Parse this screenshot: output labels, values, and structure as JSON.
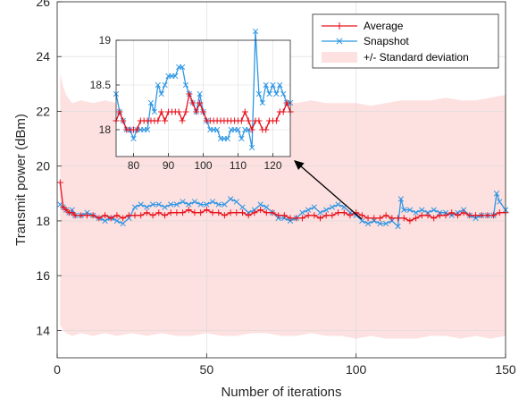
{
  "chart_data": {
    "type": "line",
    "xlabel": "Number of iterations",
    "ylabel": "Transmit power (dBm)",
    "xlim": [
      0,
      150
    ],
    "ylim": [
      13,
      26
    ],
    "xticks": [
      0,
      50,
      100,
      150
    ],
    "yticks": [
      14,
      16,
      18,
      20,
      22,
      24,
      26
    ],
    "grid": true,
    "legend_position": "top-right",
    "colors": {
      "average": "#e8101c",
      "snapshot": "#2f97e4",
      "band": "#fde0e0"
    },
    "legend": [
      "Average",
      "Snapshot",
      "+/- Standard deviation"
    ],
    "series": [
      {
        "name": "Average",
        "x": [
          1,
          2,
          3,
          4,
          5,
          6,
          8,
          10,
          12,
          14,
          16,
          18,
          20,
          22,
          24,
          26,
          28,
          30,
          32,
          34,
          36,
          38,
          40,
          42,
          44,
          46,
          48,
          50,
          52,
          54,
          56,
          58,
          60,
          62,
          64,
          66,
          68,
          70,
          72,
          74,
          76,
          78,
          80,
          82,
          84,
          86,
          88,
          90,
          92,
          94,
          96,
          98,
          100,
          102,
          104,
          106,
          108,
          110,
          112,
          114,
          116,
          118,
          120,
          122,
          124,
          126,
          128,
          130,
          132,
          134,
          136,
          138,
          140,
          142,
          144,
          146,
          148,
          150
        ],
        "y": [
          19.4,
          18.5,
          18.4,
          18.3,
          18.3,
          18.2,
          18.2,
          18.2,
          18.2,
          18.1,
          18.2,
          18.1,
          18.2,
          18.1,
          18.2,
          18.2,
          18.2,
          18.3,
          18.2,
          18.3,
          18.2,
          18.3,
          18.3,
          18.3,
          18.4,
          18.3,
          18.3,
          18.4,
          18.3,
          18.3,
          18.2,
          18.3,
          18.3,
          18.3,
          18.2,
          18.3,
          18.4,
          18.3,
          18.3,
          18.2,
          18.2,
          18.1,
          18.1,
          18.1,
          18.2,
          18.2,
          18.1,
          18.2,
          18.2,
          18.3,
          18.3,
          18.2,
          18.3,
          18.2,
          18.1,
          18.1,
          18.1,
          18.2,
          18.1,
          18.1,
          18.1,
          18.0,
          18.1,
          18.2,
          18.2,
          18.1,
          18.2,
          18.2,
          18.3,
          18.2,
          18.3,
          18.2,
          18.2,
          18.2,
          18.2,
          18.2,
          18.3,
          18.3
        ]
      },
      {
        "name": "Snapshot",
        "x": [
          1,
          2,
          3,
          4,
          5,
          6,
          8,
          10,
          12,
          14,
          16,
          18,
          20,
          22,
          24,
          26,
          28,
          30,
          32,
          34,
          36,
          38,
          40,
          42,
          44,
          46,
          48,
          50,
          52,
          54,
          56,
          58,
          60,
          62,
          64,
          66,
          68,
          70,
          72,
          74,
          76,
          78,
          80,
          82,
          84,
          86,
          88,
          90,
          92,
          94,
          96,
          98,
          100,
          102,
          104,
          106,
          108,
          110,
          112,
          114,
          115,
          116,
          118,
          120,
          122,
          124,
          126,
          128,
          130,
          132,
          134,
          136,
          138,
          140,
          142,
          144,
          146,
          147,
          148,
          150
        ],
        "y": [
          18.6,
          18.5,
          18.4,
          18.3,
          18.4,
          18.2,
          18.2,
          18.3,
          18.2,
          18.1,
          18.0,
          18.1,
          18.0,
          17.9,
          18.1,
          18.5,
          18.6,
          18.5,
          18.6,
          18.6,
          18.5,
          18.6,
          18.6,
          18.7,
          18.6,
          18.7,
          18.6,
          18.6,
          18.7,
          18.6,
          18.6,
          18.8,
          18.7,
          18.5,
          18.3,
          18.4,
          18.6,
          18.5,
          18.3,
          18.1,
          18.1,
          18.0,
          18.1,
          18.3,
          18.4,
          18.5,
          18.3,
          18.4,
          18.5,
          18.6,
          18.5,
          18.3,
          18.2,
          18.0,
          17.9,
          18.0,
          17.9,
          17.9,
          18.0,
          17.8,
          18.8,
          18.4,
          18.4,
          18.3,
          18.4,
          18.3,
          18.4,
          18.3,
          18.3,
          18.2,
          18.3,
          18.4,
          18.2,
          18.1,
          18.2,
          18.2,
          18.2,
          19.0,
          18.7,
          18.4
        ]
      }
    ],
    "std_band": {
      "x": [
        1,
        2,
        3,
        5,
        8,
        12,
        16,
        20,
        25,
        30,
        35,
        40,
        45,
        50,
        55,
        60,
        65,
        70,
        75,
        80,
        85,
        90,
        95,
        100,
        105,
        110,
        115,
        120,
        125,
        130,
        135,
        140,
        145,
        150
      ],
      "lower": [
        14.2,
        14.0,
        13.9,
        13.8,
        13.9,
        13.8,
        13.9,
        13.8,
        13.9,
        13.8,
        13.9,
        13.8,
        13.8,
        13.9,
        13.8,
        13.8,
        13.9,
        13.9,
        13.8,
        13.8,
        13.9,
        13.8,
        13.8,
        13.7,
        13.8,
        13.7,
        13.7,
        13.7,
        13.8,
        13.8,
        13.7,
        13.8,
        13.7,
        13.8
      ],
      "upper": [
        23.4,
        22.9,
        22.6,
        22.3,
        22.4,
        22.3,
        22.4,
        22.3,
        22.4,
        22.3,
        22.3,
        22.4,
        22.3,
        22.4,
        22.4,
        22.4,
        22.3,
        22.4,
        22.4,
        22.3,
        22.4,
        22.3,
        22.3,
        22.3,
        22.2,
        22.3,
        22.4,
        22.4,
        22.4,
        22.5,
        22.4,
        22.4,
        22.5,
        22.6
      ]
    },
    "inset": {
      "xlim": [
        75,
        125
      ],
      "ylim": [
        17.7,
        19
      ],
      "xticks": [
        80,
        90,
        100,
        110,
        120
      ],
      "yticks": [
        18,
        18.5,
        19
      ],
      "ytick_labels": [
        "18",
        "18.5",
        "19"
      ],
      "average": {
        "x": [
          75,
          76,
          77,
          78,
          79,
          80,
          81,
          82,
          83,
          84,
          85,
          86,
          87,
          88,
          89,
          90,
          91,
          92,
          93,
          94,
          95,
          96,
          97,
          98,
          99,
          100,
          101,
          102,
          103,
          104,
          105,
          106,
          107,
          108,
          109,
          110,
          111,
          112,
          113,
          114,
          115,
          116,
          117,
          118,
          119,
          120,
          121,
          122,
          123,
          124,
          125
        ],
        "y": [
          18.1,
          18.2,
          18.1,
          18.0,
          18.0,
          18.0,
          18.0,
          18.1,
          18.1,
          18.1,
          18.1,
          18.1,
          18.1,
          18.2,
          18.1,
          18.2,
          18.2,
          18.2,
          18.2,
          18.1,
          18.2,
          18.4,
          18.3,
          18.2,
          18.3,
          18.2,
          18.1,
          18.1,
          18.1,
          18.1,
          18.1,
          18.1,
          18.1,
          18.1,
          18.1,
          18.1,
          18.1,
          18.2,
          18.1,
          18.0,
          18.1,
          18.1,
          18.0,
          18.0,
          18.1,
          18.1,
          18.1,
          18.2,
          18.2,
          18.3,
          18.2
        ]
      },
      "snapshot": {
        "x": [
          75,
          76,
          77,
          78,
          79,
          80,
          81,
          82,
          83,
          84,
          85,
          86,
          87,
          88,
          89,
          90,
          91,
          92,
          93,
          94,
          95,
          96,
          97,
          98,
          99,
          100,
          101,
          102,
          103,
          104,
          105,
          106,
          107,
          108,
          109,
          110,
          111,
          112,
          113,
          114,
          115,
          116,
          117,
          118,
          119,
          120,
          121,
          122,
          123,
          124,
          125
        ],
        "y": [
          18.4,
          18.2,
          18.1,
          18.0,
          18.0,
          17.9,
          18.0,
          18.0,
          18.0,
          18.0,
          18.3,
          18.2,
          18.5,
          18.4,
          18.5,
          18.6,
          18.6,
          18.6,
          18.7,
          18.7,
          18.5,
          18.4,
          18.3,
          18.2,
          18.4,
          18.2,
          18.1,
          18.0,
          18.0,
          18.0,
          17.9,
          17.9,
          17.9,
          18.0,
          18.0,
          18.0,
          17.9,
          18.0,
          18.0,
          17.8,
          19.1,
          18.4,
          18.3,
          18.5,
          18.4,
          18.5,
          18.4,
          18.5,
          18.4,
          18.3,
          18.3
        ]
      }
    }
  }
}
